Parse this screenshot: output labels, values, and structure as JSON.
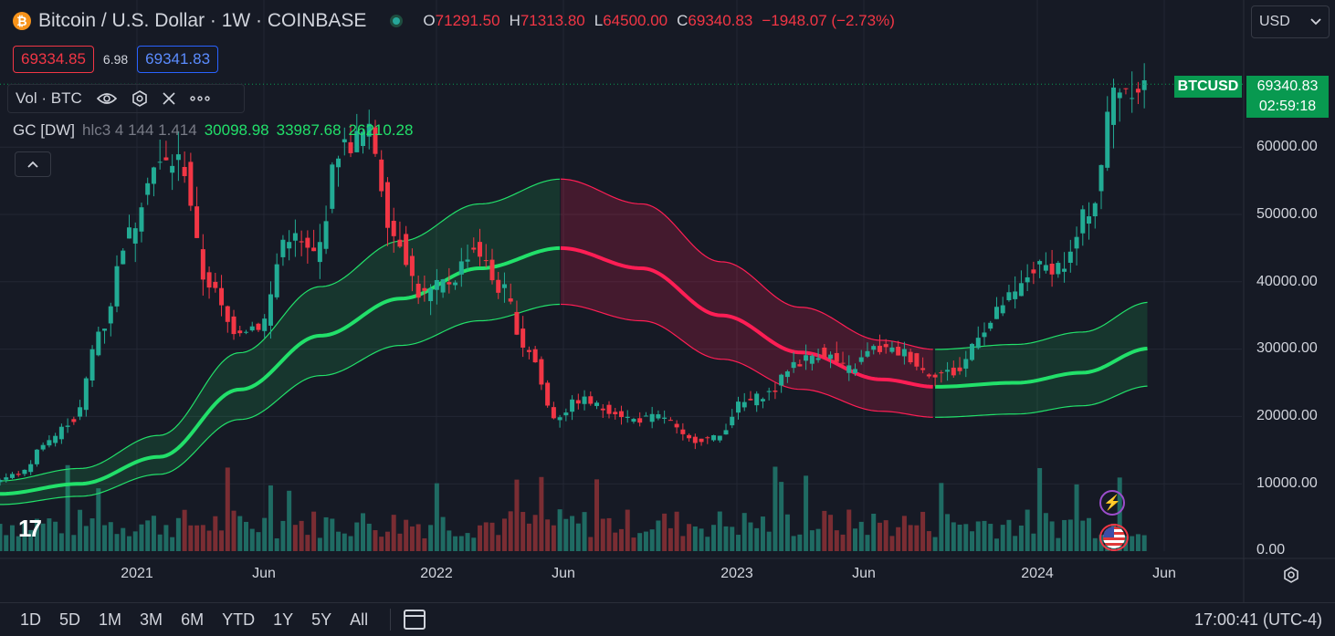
{
  "header": {
    "logo_glyph": "₿",
    "title": "Bitcoin / U.S. Dollar · 1W · COINBASE",
    "ohlc": [
      {
        "k": "O",
        "v": "71291.50"
      },
      {
        "k": "H",
        "v": "71313.80"
      },
      {
        "k": "L",
        "v": "64500.00"
      },
      {
        "k": "C",
        "v": "69340.83"
      }
    ],
    "change": "−1948.07 (−2.73%)"
  },
  "trade": {
    "sell": "69334.85",
    "spread": "6.98",
    "buy": "69341.83"
  },
  "volume_legend": {
    "label": "Vol · BTC"
  },
  "indicator_legend": {
    "name": "GC [DW]",
    "params": "hlc3 4 144 1.414",
    "values": [
      "30098.98",
      "33987.68",
      "26210.28"
    ]
  },
  "currency": {
    "selected": "USD"
  },
  "last_price": {
    "symbol": "BTCUSD",
    "price": "69340.83",
    "countdown": "02:59:18"
  },
  "bottom_bar": {
    "ranges": [
      "1D",
      "5D",
      "1M",
      "3M",
      "6M",
      "YTD",
      "1Y",
      "5Y",
      "All"
    ],
    "clock": "17:00:41 (UTC-4)"
  },
  "colors": {
    "background": "#161a25",
    "up": "#22ab94",
    "down": "#f23645",
    "gc_green": "#22e06a",
    "gc_red": "#ff1e55",
    "label_green": "#089950"
  },
  "chart_data": {
    "type": "candlestick",
    "ylim": [
      0,
      80000
    ],
    "y_ticks": [
      "60000.00",
      "50000.00",
      "40000.00",
      "30000.00",
      "20000.00",
      "10000.00",
      "0.00"
    ],
    "x_ticks": [
      "2021",
      "Jun",
      "2022",
      "Jun",
      "2023",
      "Jun",
      "2024",
      "Jun"
    ],
    "x_range": [
      "2020-09",
      "2024-07"
    ],
    "price_path": [
      [
        "2020-09-01",
        10500
      ],
      [
        "2020-10-01",
        11500
      ],
      [
        "2020-11-01",
        16500
      ],
      [
        "2020-12-01",
        19500
      ],
      [
        "2021-01-01",
        33000
      ],
      [
        "2021-02-01",
        47000
      ],
      [
        "2021-03-01",
        57000
      ],
      [
        "2021-04-01",
        58000
      ],
      [
        "2021-05-01",
        40000
      ],
      [
        "2021-06-01",
        33000
      ],
      [
        "2021-07-01",
        33500
      ],
      [
        "2021-08-01",
        47000
      ],
      [
        "2021-09-01",
        44000
      ],
      [
        "2021-10-01",
        60000
      ],
      [
        "2021-11-01",
        62000
      ],
      [
        "2021-12-01",
        47000
      ],
      [
        "2022-01-01",
        38000
      ],
      [
        "2022-02-01",
        40000
      ],
      [
        "2022-03-01",
        45000
      ],
      [
        "2022-04-01",
        39000
      ],
      [
        "2022-05-01",
        30000
      ],
      [
        "2022-06-01",
        20000
      ],
      [
        "2022-07-01",
        22500
      ],
      [
        "2022-08-01",
        21000
      ],
      [
        "2022-09-01",
        19500
      ],
      [
        "2022-10-01",
        20000
      ],
      [
        "2022-11-01",
        16500
      ],
      [
        "2022-12-01",
        16800
      ],
      [
        "2023-01-01",
        22000
      ],
      [
        "2023-02-01",
        23500
      ],
      [
        "2023-03-01",
        28000
      ],
      [
        "2023-04-01",
        29500
      ],
      [
        "2023-05-01",
        27000
      ],
      [
        "2023-06-01",
        30000
      ],
      [
        "2023-07-01",
        29500
      ],
      [
        "2023-08-01",
        26500
      ],
      [
        "2023-09-01",
        26500
      ],
      [
        "2023-10-01",
        33000
      ],
      [
        "2023-11-01",
        37500
      ],
      [
        "2023-12-01",
        42000
      ],
      [
        "2024-01-01",
        42500
      ],
      [
        "2024-02-01",
        51000
      ],
      [
        "2024-03-01",
        69000
      ],
      [
        "2024-04-01",
        69340
      ]
    ],
    "gc_center_path": [
      [
        "2020-09-01",
        8500
      ],
      [
        "2020-12-01",
        10000
      ],
      [
        "2021-03-01",
        14000
      ],
      [
        "2021-06-01",
        24000
      ],
      [
        "2021-09-01",
        32000
      ],
      [
        "2021-12-01",
        37500
      ],
      [
        "2022-03-01",
        42000
      ],
      [
        "2022-06-01",
        45000
      ],
      [
        "2022-09-01",
        42000
      ],
      [
        "2022-12-01",
        35000
      ],
      [
        "2023-03-01",
        29500
      ],
      [
        "2023-06-01",
        25500
      ],
      [
        "2023-08-01",
        24400
      ],
      [
        "2023-11-01",
        25000
      ],
      [
        "2024-01-15",
        26500
      ],
      [
        "2024-04-01",
        30100
      ]
    ],
    "gc_band_ratio": 1.414,
    "gc_color_switch": [
      "2022-06-01",
      "2023-08-01"
    ],
    "last_close": 69340.83
  }
}
